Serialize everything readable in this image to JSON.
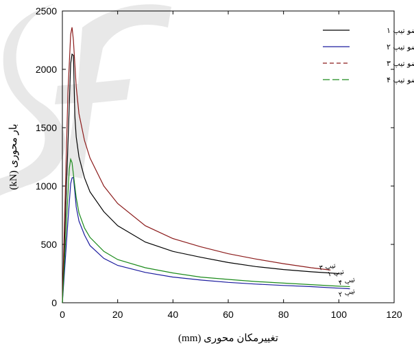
{
  "chart_data": {
    "type": "line",
    "title": "",
    "xlabel": "تغییرمکان محوری (mm)",
    "ylabel": "بار محوری (kN)",
    "xlim": [
      0,
      120
    ],
    "ylim": [
      0,
      2500
    ],
    "xticks": [
      0,
      20,
      40,
      60,
      80,
      100,
      120
    ],
    "yticks": [
      0,
      500,
      1000,
      1500,
      2000,
      2500
    ],
    "grid": false,
    "legend_position": "top-right",
    "series": [
      {
        "name": "عضو تیپ ۱",
        "end_label": "تیپ ۱",
        "color": "#000000",
        "dash": "",
        "x": [
          0,
          2,
          3,
          3.5,
          4,
          4.5,
          5,
          6,
          8,
          10,
          15,
          20,
          30,
          40,
          50,
          60,
          70,
          80,
          90,
          100
        ],
        "y": [
          0,
          1350,
          2050,
          2130,
          2120,
          1600,
          1420,
          1250,
          1070,
          950,
          780,
          660,
          520,
          440,
          390,
          345,
          310,
          285,
          265,
          250
        ]
      },
      {
        "name": "عضو تیپ ۲",
        "end_label": "تیپ ۲",
        "color": "#1a1a9e",
        "dash": "",
        "x": [
          0,
          2,
          3,
          3.5,
          4,
          4.5,
          5,
          6,
          8,
          10,
          15,
          20,
          30,
          40,
          50,
          60,
          70,
          80,
          90,
          100,
          104
        ],
        "y": [
          0,
          700,
          1020,
          1070,
          1075,
          950,
          820,
          700,
          580,
          490,
          380,
          320,
          260,
          220,
          195,
          175,
          160,
          148,
          138,
          125,
          120
        ]
      },
      {
        "name": "عضو تیپ ۳",
        "end_label": "تیپ ۳",
        "color": "#8b1a1a",
        "dash": "",
        "x": [
          0,
          2,
          3,
          3.5,
          4,
          5,
          6,
          8,
          10,
          15,
          20,
          30,
          40,
          50,
          60,
          70,
          80,
          90,
          97
        ],
        "y": [
          0,
          1800,
          2300,
          2360,
          2250,
          1850,
          1620,
          1390,
          1240,
          1000,
          850,
          660,
          550,
          480,
          420,
          375,
          335,
          300,
          280
        ]
      },
      {
        "name": "عضو تیپ ۴",
        "end_label": "تیپ ۴",
        "color": "#1a8a1a",
        "dash": "",
        "x": [
          0,
          1.5,
          2.5,
          3,
          3.5,
          4,
          5,
          6,
          8,
          10,
          15,
          20,
          30,
          40,
          50,
          60,
          70,
          80,
          90,
          100,
          104
        ],
        "y": [
          0,
          700,
          1150,
          1230,
          1200,
          1100,
          900,
          770,
          640,
          560,
          440,
          370,
          300,
          255,
          220,
          200,
          182,
          168,
          155,
          142,
          138
        ]
      }
    ],
    "dashed_legend": [
      {
        "text": "عضو تیپ ۱",
        "color": "#000000",
        "dash": ""
      },
      {
        "text": "عضو تیپ ۲",
        "color": "#1a1a9e",
        "dash": ""
      },
      {
        "text": "عضو تیپ ۳",
        "color": "#8b1a1a",
        "dash": "6,4"
      },
      {
        "text": "عضو تیپ ۴",
        "color": "#1a8a1a",
        "dash": "10,4"
      }
    ]
  }
}
